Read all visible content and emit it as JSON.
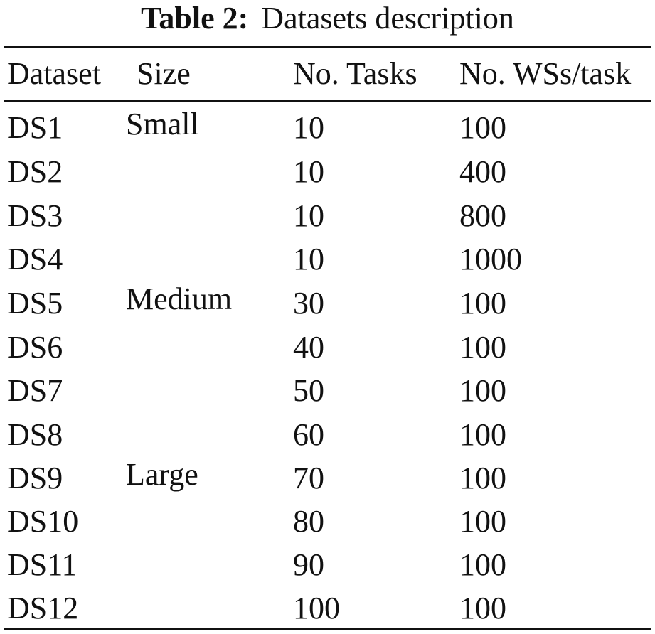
{
  "caption": {
    "label": "Table 2:",
    "text": "Datasets description"
  },
  "table": {
    "headers": [
      "Dataset",
      "Size",
      "No. Tasks",
      "No. WSs/task"
    ],
    "rows": [
      {
        "dataset": "DS1",
        "size": "Small",
        "tasks": "10",
        "ws": "100"
      },
      {
        "dataset": "DS2",
        "size": "",
        "tasks": "10",
        "ws": "400"
      },
      {
        "dataset": "DS3",
        "size": "",
        "tasks": "10",
        "ws": "800"
      },
      {
        "dataset": "DS4",
        "size": "",
        "tasks": "10",
        "ws": "1000"
      },
      {
        "dataset": "DS5",
        "size": "Medium",
        "tasks": "30",
        "ws": "100"
      },
      {
        "dataset": "DS6",
        "size": "",
        "tasks": "40",
        "ws": "100"
      },
      {
        "dataset": "DS7",
        "size": "",
        "tasks": "50",
        "ws": "100"
      },
      {
        "dataset": "DS8",
        "size": "",
        "tasks": "60",
        "ws": "100"
      },
      {
        "dataset": "DS9",
        "size": "Large",
        "tasks": "70",
        "ws": "100"
      },
      {
        "dataset": "DS10",
        "size": "",
        "tasks": "80",
        "ws": "100"
      },
      {
        "dataset": "DS11",
        "size": "",
        "tasks": "90",
        "ws": "100"
      },
      {
        "dataset": "DS12",
        "size": "",
        "tasks": "100",
        "ws": "100"
      }
    ]
  }
}
